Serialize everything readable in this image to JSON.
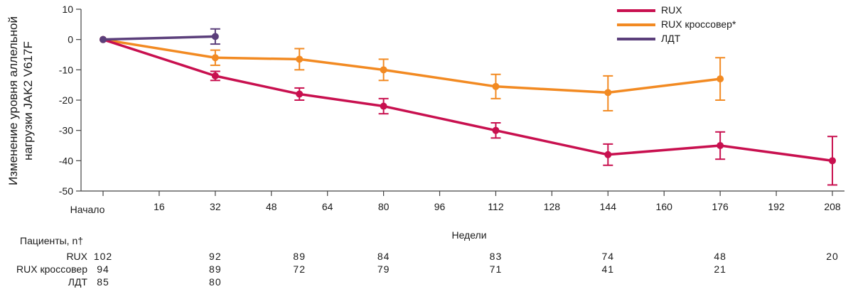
{
  "chart_data": {
    "type": "line",
    "ylabel": [
      "Изменение уровня аллельной",
      "нагрузки JAK2 V617F"
    ],
    "xlabel": "Недели",
    "x_ticks": [
      0,
      16,
      32,
      48,
      64,
      80,
      96,
      112,
      128,
      144,
      160,
      176,
      192,
      208
    ],
    "x_tick_labels": [
      "Начало",
      "16",
      "32",
      "48",
      "64",
      "80",
      "96",
      "112",
      "128",
      "144",
      "160",
      "176",
      "192",
      "208"
    ],
    "xlim": [
      0,
      208
    ],
    "ylim": [
      -50,
      10
    ],
    "y_ticks": [
      10,
      0,
      -10,
      -20,
      -30,
      -40,
      -50
    ],
    "legend_position": "top-right",
    "series": [
      {
        "name": "RUX",
        "color": "#c8104f",
        "points": [
          {
            "x": 0,
            "y": 0,
            "err_low": 0,
            "err_high": 0
          },
          {
            "x": 32,
            "y": -12,
            "err_low": -13.5,
            "err_high": -10.5
          },
          {
            "x": 56,
            "y": -18,
            "err_low": -20,
            "err_high": -16
          },
          {
            "x": 80,
            "y": -22,
            "err_low": -24.5,
            "err_high": -19.5
          },
          {
            "x": 112,
            "y": -30,
            "err_low": -32.5,
            "err_high": -27.5
          },
          {
            "x": 144,
            "y": -38,
            "err_low": -41.5,
            "err_high": -34.5
          },
          {
            "x": 176,
            "y": -35,
            "err_low": -39.5,
            "err_high": -30.5
          },
          {
            "x": 208,
            "y": -40,
            "err_low": -48,
            "err_high": -32
          }
        ]
      },
      {
        "name": "RUX кроссовер*",
        "color": "#f28a22",
        "points": [
          {
            "x": 0,
            "y": 0,
            "err_low": 0,
            "err_high": 0
          },
          {
            "x": 32,
            "y": -6,
            "err_low": -8.5,
            "err_high": -3.5
          },
          {
            "x": 56,
            "y": -6.5,
            "err_low": -10,
            "err_high": -3
          },
          {
            "x": 80,
            "y": -10,
            "err_low": -13.5,
            "err_high": -6.5
          },
          {
            "x": 112,
            "y": -15.5,
            "err_low": -19.5,
            "err_high": -11.5
          },
          {
            "x": 144,
            "y": -17.5,
            "err_low": -23.5,
            "err_high": -12
          },
          {
            "x": 176,
            "y": -13,
            "err_low": -20,
            "err_high": -6
          }
        ]
      },
      {
        "name": "ЛДТ",
        "color": "#5b3f7b",
        "points": [
          {
            "x": 0,
            "y": 0,
            "err_low": 0,
            "err_high": 0
          },
          {
            "x": 32,
            "y": 1,
            "err_low": -1.5,
            "err_high": 3.5
          }
        ]
      }
    ]
  },
  "patients": {
    "header": "Пациенты, n†",
    "rows": [
      {
        "label": "RUX",
        "values": [
          {
            "x": 0,
            "v": "102"
          },
          {
            "x": 32,
            "v": "92"
          },
          {
            "x": 56,
            "v": "89"
          },
          {
            "x": 80,
            "v": "84"
          },
          {
            "x": 112,
            "v": "83"
          },
          {
            "x": 144,
            "v": "74"
          },
          {
            "x": 176,
            "v": "48"
          },
          {
            "x": 208,
            "v": "20"
          }
        ]
      },
      {
        "label": "RUX кроссовер",
        "values": [
          {
            "x": 0,
            "v": "94"
          },
          {
            "x": 32,
            "v": "89"
          },
          {
            "x": 56,
            "v": "72"
          },
          {
            "x": 80,
            "v": "79"
          },
          {
            "x": 112,
            "v": "71"
          },
          {
            "x": 144,
            "v": "41"
          },
          {
            "x": 176,
            "v": "21"
          }
        ]
      },
      {
        "label": "ЛДТ",
        "values": [
          {
            "x": 0,
            "v": "85"
          },
          {
            "x": 32,
            "v": "80"
          }
        ]
      }
    ]
  }
}
